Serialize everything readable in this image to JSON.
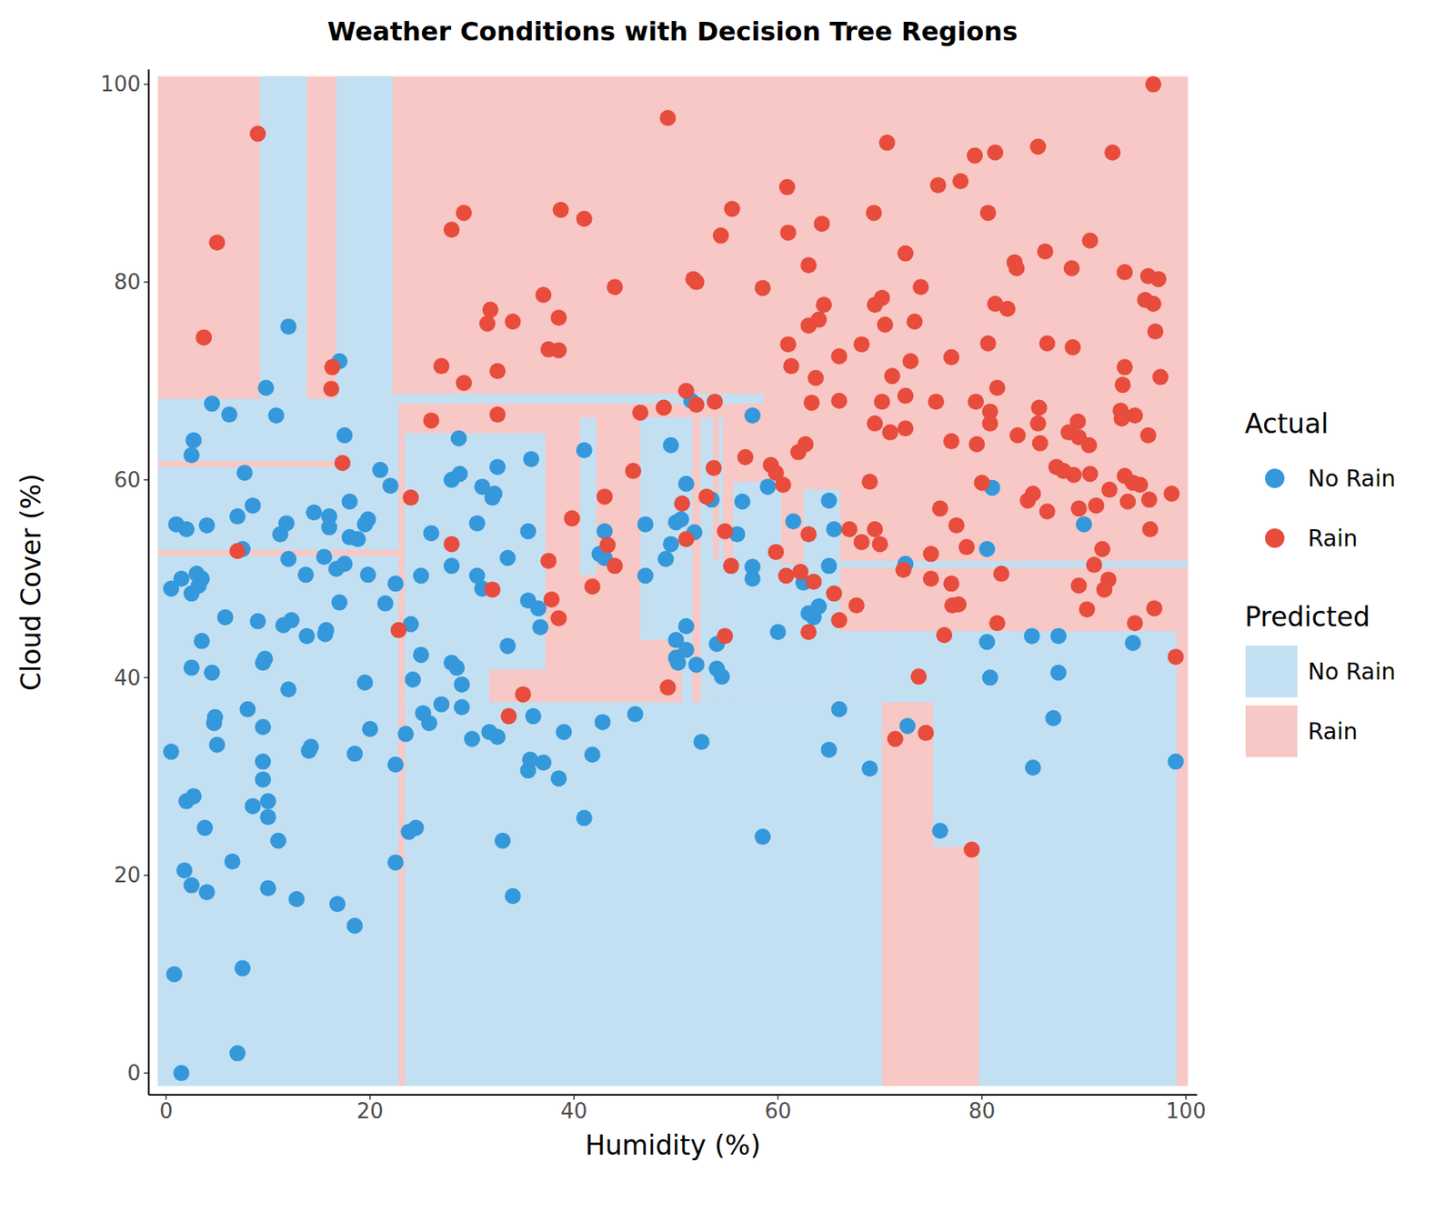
{
  "chart_data": {
    "type": "scatter",
    "title": "Weather Conditions with Decision Tree Regions",
    "x_label": "Humidity (%)",
    "y_label": "Cloud Cover (%)",
    "xlim": [
      -1.7,
      101.1
    ],
    "ylim": [
      -2.2,
      101.5
    ],
    "xticks": [
      0,
      20,
      40,
      60,
      80,
      100
    ],
    "yticks": [
      0,
      20,
      40,
      60,
      80,
      100
    ],
    "grid": false,
    "legend": "right",
    "legend_title": "Actual",
    "series": [
      {
        "name": "No Rain",
        "color": "#3498db",
        "marker": "circle",
        "x": [
          0.5,
          0.8,
          1.5,
          0.5,
          1,
          2,
          1.5,
          2.5,
          2.5,
          2.7,
          2.5,
          2,
          2.7,
          2.5,
          1.8,
          3,
          3.5,
          3.2,
          3.5,
          4,
          4.5,
          3.8,
          4,
          4.5,
          4.7,
          4.8,
          5,
          5.8,
          6.2,
          6.5,
          7,
          7,
          7.5,
          7.5,
          7.7,
          8,
          8.5,
          8.5,
          9,
          9.5,
          9.5,
          9.7,
          9.5,
          9.5,
          10,
          10,
          10,
          9.8,
          10.8,
          11,
          11.2,
          11.5,
          11.8,
          12,
          12,
          12,
          12.3,
          12.8,
          13.7,
          13.8,
          14,
          14.2,
          14.5,
          15.5,
          15.6,
          15.7,
          16,
          16,
          16.7,
          16.8,
          17,
          17.5,
          17.5,
          17,
          18,
          18,
          18.5,
          18.5,
          18.8,
          19.5,
          19.5,
          19.8,
          19.8,
          20,
          21,
          21.5,
          22,
          22.5,
          22.5,
          22.5,
          23.5,
          23.8,
          24,
          24.2,
          24.5,
          25,
          25,
          25.2,
          25.8,
          26,
          27,
          28,
          28,
          28,
          28.5,
          28.7,
          28.8,
          29,
          29,
          30,
          30.5,
          30.5,
          31,
          31,
          31.7,
          32,
          32.2,
          32.5,
          32.5,
          33,
          33.5,
          33.5,
          34,
          35.5,
          35.8,
          35.5,
          35.5,
          35.7,
          36,
          36.5,
          36.7,
          37,
          38.5,
          39,
          41,
          41,
          41.8,
          42.5,
          42.8,
          43,
          43,
          46,
          47,
          47,
          49,
          49.5,
          49.5,
          50,
          50,
          50,
          50.2,
          50.5,
          51,
          51,
          51,
          51.5,
          51.8,
          52,
          52.5,
          53.5,
          54,
          54,
          54.5,
          56,
          56.5,
          57.5,
          57.5,
          57.5,
          58.5,
          59,
          60,
          61.5,
          62.5,
          63,
          63.5,
          64,
          65,
          65,
          65,
          65.5,
          66,
          69,
          72.5,
          72.7,
          75.9,
          80.5,
          80.5,
          80.8,
          81,
          84.9,
          85,
          87,
          87.5,
          87.5,
          90,
          94.8,
          99
        ],
        "values": [
          32.5,
          10,
          0,
          49,
          55.5,
          55,
          50,
          48.5,
          62.5,
          64,
          41,
          27.5,
          28,
          19,
          20.5,
          50.5,
          50,
          49.3,
          43.7,
          55.4,
          67.7,
          24.8,
          18.3,
          40.5,
          35.4,
          36,
          33.2,
          46.1,
          66.6,
          21.4,
          56.3,
          2,
          10.6,
          53,
          60.7,
          36.8,
          57.4,
          27,
          45.7,
          35,
          41.5,
          41.9,
          31.5,
          29.7,
          27.5,
          25.9,
          18.7,
          69.3,
          66.5,
          23.5,
          54.5,
          45.3,
          55.6,
          52,
          38.8,
          75.5,
          45.8,
          17.6,
          50.4,
          44.2,
          32.6,
          33,
          56.7,
          52.2,
          44.4,
          44.8,
          56.3,
          55.2,
          51,
          17.1,
          47.6,
          51.5,
          64.5,
          72,
          57.8,
          54.2,
          14.9,
          32.3,
          54,
          39.5,
          55.5,
          56,
          50.4,
          34.8,
          61,
          47.5,
          59.4,
          49.5,
          31.2,
          21.3,
          34.3,
          24.4,
          45.4,
          39.8,
          24.8,
          50.3,
          42.3,
          36.4,
          35.4,
          54.6,
          37.3,
          60,
          51.3,
          41.5,
          41,
          64.2,
          60.6,
          39.3,
          37,
          33.8,
          55.6,
          50.3,
          49,
          59.3,
          34.5,
          58.2,
          58.6,
          61.3,
          34,
          23.5,
          43.2,
          52.1,
          17.9,
          54.8,
          62.1,
          47.8,
          30.6,
          31.7,
          36.1,
          47,
          45.1,
          31.4,
          29.8,
          34.5,
          25.8,
          63,
          32.2,
          52.5,
          35.5,
          54.8,
          52.1,
          36.3,
          55.5,
          50.3,
          52,
          63.5,
          53.5,
          55.7,
          43.8,
          42,
          41.5,
          56,
          45.2,
          42.8,
          59.6,
          68,
          54.7,
          41.3,
          33.5,
          58,
          43.4,
          40.9,
          40.1,
          54.5,
          57.8,
          66.5,
          51.2,
          50,
          23.9,
          59.3,
          44.6,
          55.8,
          49.6,
          46.5,
          46.1,
          47.2,
          57.9,
          51.3,
          32.7,
          55,
          36.8,
          30.8,
          51.5,
          35.1,
          24.5,
          53,
          43.6,
          40,
          59.2,
          44.2,
          30.9,
          35.9,
          44.2,
          40.5,
          55.5,
          43.5,
          31.5
        ]
      },
      {
        "name": "Rain",
        "color": "#e74c3c",
        "marker": "circle",
        "x": [
          9,
          5,
          3.7,
          7,
          16.2,
          16.3,
          17.3,
          22.8,
          24,
          26,
          27,
          28,
          28,
          29.2,
          29.2,
          31.5,
          31.8,
          32,
          32.5,
          32.5,
          34,
          33.6,
          35,
          37,
          37.5,
          38.5,
          38.5,
          38.7,
          37.5,
          37.8,
          38.5,
          39.8,
          41,
          41.8,
          43,
          43.3,
          44,
          44,
          45.8,
          46.5,
          48.8,
          49.2,
          49.2,
          50.6,
          51,
          51,
          51.7,
          52,
          52,
          53,
          53.7,
          53.8,
          54.4,
          54.8,
          54.8,
          55.4,
          55.5,
          56.8,
          58.5,
          59.3,
          59.8,
          59.8,
          60.5,
          60.8,
          60.9,
          61,
          61,
          61.3,
          62,
          62.2,
          62.7,
          63,
          63,
          63.3,
          63,
          63,
          63.5,
          63.7,
          64,
          64.3,
          64.5,
          65.5,
          66,
          66,
          66,
          67,
          67.7,
          68.2,
          68.2,
          69,
          69.4,
          69.5,
          69.5,
          69.5,
          70,
          70.2,
          70.2,
          70.5,
          70.7,
          71,
          71.2,
          71.5,
          72.3,
          72.5,
          72.5,
          72.5,
          73,
          73.4,
          73.8,
          74,
          74.5,
          75,
          75,
          75.5,
          75.7,
          75.9,
          76.3,
          77,
          77,
          77,
          77.1,
          77.5,
          77.7,
          77.9,
          78.5,
          79,
          79.3,
          79.4,
          79.5,
          80,
          80.6,
          80.6,
          80.8,
          80.8,
          81.3,
          81.3,
          81.5,
          81.5,
          81.9,
          82.5,
          83.2,
          83.4,
          83.5,
          84.5,
          85,
          85.5,
          85.5,
          85.6,
          85.7,
          86.2,
          86.4,
          86.4,
          87.3,
          88,
          88.5,
          88.8,
          88.9,
          89,
          89.4,
          89.5,
          89.5,
          89.5,
          90.3,
          90.5,
          90.6,
          90.6,
          91,
          91.2,
          91.8,
          92,
          92.4,
          92.5,
          92.8,
          93.6,
          93.7,
          93.8,
          94,
          94,
          94,
          94.3,
          94.8,
          95,
          95,
          95.5,
          96,
          96.3,
          96.3,
          96.4,
          96.5,
          96.8,
          96.8,
          96.9,
          97,
          97.3,
          97.5,
          98.6,
          99
        ],
        "values": [
          95,
          84,
          74.4,
          52.8,
          69.2,
          71.4,
          61.7,
          44.8,
          58.2,
          66,
          71.5,
          85.3,
          53.5,
          87,
          69.8,
          75.8,
          77.2,
          48.9,
          71,
          66.6,
          76,
          36.1,
          38.3,
          78.7,
          73.2,
          73.1,
          76.4,
          87.3,
          51.8,
          47.9,
          46,
          56.1,
          86.4,
          49.2,
          58.3,
          53.4,
          79.5,
          51.3,
          60.9,
          66.8,
          67.3,
          39,
          96.6,
          57.6,
          69,
          54,
          80.3,
          80,
          67.6,
          58.3,
          61.2,
          67.9,
          84.7,
          54.8,
          44.2,
          51.3,
          87.4,
          62.3,
          79.4,
          61.5,
          60.7,
          52.7,
          59.5,
          50.3,
          89.6,
          85,
          73.7,
          71.5,
          62.8,
          50.7,
          63.6,
          81.7,
          75.6,
          67.8,
          54.5,
          44.6,
          49.7,
          70.3,
          76.2,
          85.9,
          77.7,
          48.5,
          72.5,
          45.8,
          68,
          55,
          47.3,
          53.7,
          73.7,
          59.8,
          87,
          55,
          65.7,
          77.7,
          53.5,
          78.4,
          67.9,
          75.7,
          94.1,
          64.8,
          70.5,
          33.8,
          50.9,
          68.5,
          65.2,
          82.9,
          72,
          76,
          40.1,
          79.5,
          34.4,
          52.5,
          50,
          67.9,
          89.8,
          57.1,
          44.3,
          72.4,
          63.9,
          49.5,
          47.3,
          55.4,
          47.4,
          90.2,
          53.2,
          22.6,
          92.8,
          67.9,
          63.6,
          59.7,
          87,
          73.8,
          66.9,
          65.7,
          93.1,
          77.8,
          69.3,
          45.5,
          50.5,
          77.3,
          82,
          81.4,
          64.5,
          57.9,
          58.6,
          93.7,
          65.7,
          67.3,
          63.7,
          83.1,
          73.8,
          56.8,
          61.3,
          60.9,
          64.8,
          81.4,
          73.4,
          60.5,
          65.9,
          57.1,
          64.3,
          49.3,
          46.9,
          63.5,
          84.2,
          60.6,
          51.4,
          57.4,
          53,
          48.9,
          49.9,
          59,
          93.1,
          67,
          66.2,
          69.6,
          71.4,
          81,
          60.4,
          57.8,
          59.7,
          66.5,
          45.5,
          59.5,
          78.2,
          80.6,
          64.5,
          58,
          55,
          77.8,
          100,
          47,
          75,
          80.3,
          70.4,
          58.6,
          42.1
        ]
      }
    ],
    "regions": {
      "title": "Predicted",
      "classes": [
        {
          "name": "No Rain",
          "color": "#c3e0f3"
        },
        {
          "name": "Rain",
          "color": "#f7c8c5"
        }
      ],
      "rects": [
        {
          "x": [
            -0.8,
            100.2
          ],
          "y": [
            -1.3,
            100.8
          ],
          "class": "Rain"
        },
        {
          "x": [
            -0.8,
            22.8
          ],
          "y": [
            -1.3,
            68.2
          ],
          "class": "No Rain"
        },
        {
          "x": [
            9.2,
            13.8
          ],
          "y": [
            68.2,
            100.8
          ],
          "class": "No Rain"
        },
        {
          "x": [
            16.7,
            22.2
          ],
          "y": [
            61.5,
            100.8
          ],
          "class": "No Rain"
        },
        {
          "x": [
            -0.8,
            16.5
          ],
          "y": [
            61.3,
            61.9
          ],
          "class": "Rain"
        },
        {
          "x": [
            -0.8,
            22.8
          ],
          "y": [
            52.3,
            52.9
          ],
          "class": "Rain"
        },
        {
          "x": [
            22.8,
            23.4
          ],
          "y": [
            -1.3,
            65
          ],
          "class": "Rain"
        },
        {
          "x": [
            23.4,
            70.2
          ],
          "y": [
            -1.3,
            37.5
          ],
          "class": "No Rain"
        },
        {
          "x": [
            23.4,
            31.7
          ],
          "y": [
            37.5,
            64.7
          ],
          "class": "No Rain"
        },
        {
          "x": [
            31.7,
            37.2
          ],
          "y": [
            40.8,
            64.7
          ],
          "class": "No Rain"
        },
        {
          "x": [
            22.2,
            58.6
          ],
          "y": [
            67.7,
            68.7
          ],
          "class": "No Rain"
        },
        {
          "x": [
            40.6,
            42.2
          ],
          "y": [
            50.4,
            66.3
          ],
          "class": "No Rain"
        },
        {
          "x": [
            46.5,
            50.6
          ],
          "y": [
            43.8,
            66.3
          ],
          "class": "No Rain"
        },
        {
          "x": [
            50.6,
            51.6
          ],
          "y": [
            37.5,
            66.3
          ],
          "class": "No Rain"
        },
        {
          "x": [
            52.4,
            53.6
          ],
          "y": [
            37.5,
            66.3
          ],
          "class": "No Rain"
        },
        {
          "x": [
            53.6,
            55.6
          ],
          "y": [
            37.5,
            52
          ],
          "class": "No Rain"
        },
        {
          "x": [
            54.2,
            54.6
          ],
          "y": [
            52,
            66.3
          ],
          "class": "No Rain"
        },
        {
          "x": [
            55.6,
            66.1
          ],
          "y": [
            37.5,
            51.5
          ],
          "class": "No Rain"
        },
        {
          "x": [
            55.6,
            60.3
          ],
          "y": [
            51.5,
            59.8
          ],
          "class": "No Rain"
        },
        {
          "x": [
            62.5,
            66.1
          ],
          "y": [
            51.5,
            59
          ],
          "class": "No Rain"
        },
        {
          "x": [
            66.1,
            70.2
          ],
          "y": [
            37.5,
            44.7
          ],
          "class": "No Rain"
        },
        {
          "x": [
            70.2,
            75.2
          ],
          "y": [
            37.5,
            44.7
          ],
          "class": "No Rain"
        },
        {
          "x": [
            75.2,
            79.7
          ],
          "y": [
            22.9,
            44.7
          ],
          "class": "No Rain"
        },
        {
          "x": [
            79.7,
            99.1
          ],
          "y": [
            -1.3,
            44.7
          ],
          "class": "No Rain"
        },
        {
          "x": [
            66.1,
            100.2
          ],
          "y": [
            51.1,
            51.8
          ],
          "class": "No Rain"
        }
      ]
    }
  }
}
